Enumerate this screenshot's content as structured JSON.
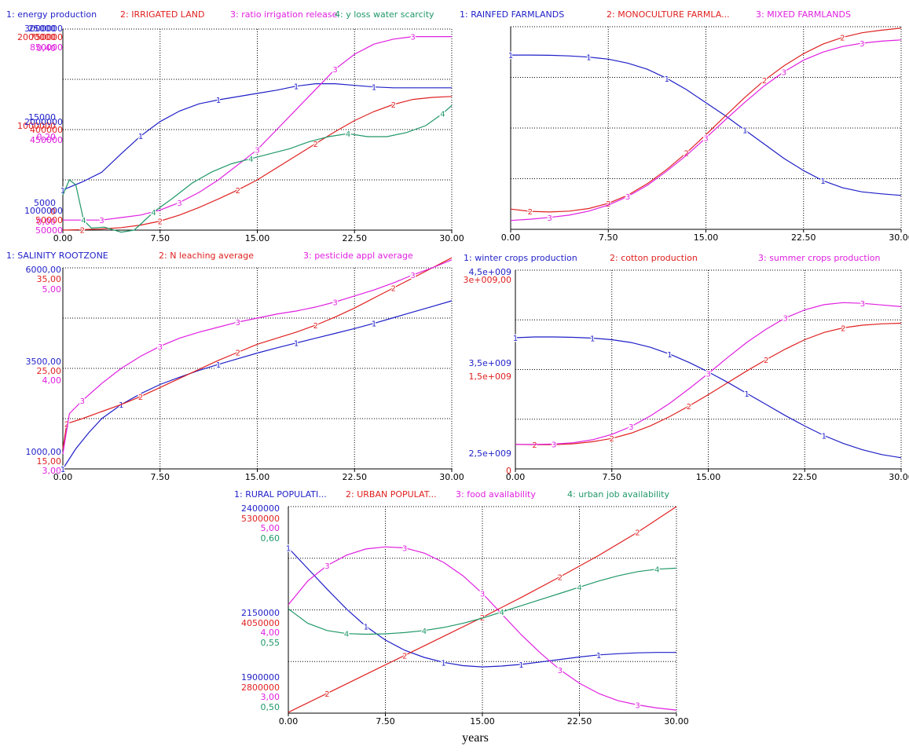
{
  "figure": {
    "xlabel": "years",
    "colors": {
      "c1": "#1f1fc8",
      "c2": "#e02020",
      "c3": "#e020e0",
      "c4": "#209868",
      "grid": "#000000",
      "axis": "#000000"
    }
  },
  "chart_data": [
    {
      "type": "line",
      "id": "energy",
      "xticks": [
        "0.00",
        "7.50",
        "15.00",
        "22.50",
        "30.00"
      ],
      "xlim": [
        0,
        30
      ],
      "legend": [
        "1: energy production",
        "2: IRRIGATED LAND",
        "3: ratio irrigation release",
        "4: y loss water scarcity"
      ],
      "series": [
        {
          "name": "energy production",
          "ylim": [
            0,
            25000
          ],
          "ticks": [
            "25000",
            "15000",
            "5000"
          ],
          "x": [
            0,
            1.5,
            3,
            4.5,
            6,
            7.5,
            9,
            10.5,
            12,
            13.5,
            15,
            16.5,
            18,
            19.5,
            21,
            22.5,
            24,
            25.5,
            27,
            28.5,
            30
          ],
          "y": [
            5000,
            6000,
            7200,
            9500,
            11700,
            13500,
            14800,
            15700,
            16200,
            16600,
            17000,
            17400,
            17900,
            18200,
            18200,
            18000,
            17800,
            17700,
            17700,
            17700,
            17700
          ]
        },
        {
          "name": "IRRIGATED LAND",
          "ylim": [
            0,
            2000000
          ],
          "ticks": [
            "2000000",
            "1000000",
            "0"
          ],
          "x": [
            0,
            1.5,
            3,
            4.5,
            6,
            7.5,
            9,
            10.5,
            12,
            13.5,
            15,
            16.5,
            18,
            19.5,
            21,
            22.5,
            24,
            25.5,
            27,
            28.5,
            30
          ],
          "y": [
            0,
            5000,
            12000,
            25000,
            50000,
            90000,
            150000,
            225000,
            310000,
            400000,
            500000,
            620000,
            740000,
            860000,
            980000,
            1090000,
            1180000,
            1250000,
            1300000,
            1320000,
            1330000
          ]
        },
        {
          "name": "ratio irrigation release",
          "ylim": [
            0,
            0.4
          ],
          "ticks": [
            "0,40",
            "0,20",
            "0,00"
          ],
          "x": [
            0,
            1.5,
            3,
            4.5,
            6,
            7.5,
            9,
            10.5,
            12,
            13.5,
            15,
            16.5,
            18,
            19.5,
            21,
            22.5,
            24,
            25.5,
            27,
            28.5,
            30
          ],
          "y": [
            0.02,
            0.02,
            0.02,
            0.025,
            0.03,
            0.04,
            0.055,
            0.075,
            0.1,
            0.13,
            0.16,
            0.2,
            0.24,
            0.28,
            0.32,
            0.35,
            0.37,
            0.38,
            0.385,
            0.385,
            0.385
          ]
        },
        {
          "name": "y loss water scarcity",
          "ylim": [
            0.14,
            0.16
          ],
          "ticks": [
            "0,16",
            "0,15",
            "0,14"
          ],
          "x": [
            0,
            0.5,
            1,
            1.6,
            2.2,
            3.2,
            4.5,
            5.5,
            7,
            8.5,
            10,
            11.5,
            13,
            14.5,
            16,
            17.5,
            19,
            20.5,
            22,
            23.5,
            25,
            26.5,
            28,
            29.3,
            30
          ],
          "y": [
            0.1435,
            0.145,
            0.1445,
            0.141,
            0.1402,
            0.1403,
            0.1398,
            0.14,
            0.1418,
            0.1432,
            0.1447,
            0.1458,
            0.1466,
            0.1471,
            0.1476,
            0.1481,
            0.1488,
            0.1493,
            0.1496,
            0.1493,
            0.1493,
            0.1497,
            0.1504,
            0.1516,
            0.1524
          ]
        }
      ]
    },
    {
      "type": "line",
      "id": "farmlands",
      "xticks": [
        "0.00",
        "7.50",
        "15.00",
        "22.50",
        "30.00"
      ],
      "xlim": [
        0,
        30
      ],
      "legend": [
        "1: RAINFED FARMLANDS",
        "2: MONOCULTURE FARMLA...",
        "3: MIXED FARMLANDS"
      ],
      "series": [
        {
          "name": "RAINFED FARMLANDS",
          "ylim": [
            1000000,
            3000000
          ],
          "ticks": [
            "3000000",
            "2000000",
            "1000000"
          ],
          "x": [
            0,
            1.5,
            3,
            4.5,
            6,
            7.5,
            9,
            10.5,
            12,
            13.5,
            15,
            16.5,
            18,
            19.5,
            21,
            22.5,
            24,
            25.5,
            27,
            28.5,
            30
          ],
          "y": [
            2720000,
            2720000,
            2718000,
            2712000,
            2700000,
            2680000,
            2640000,
            2580000,
            2490000,
            2380000,
            2250000,
            2120000,
            1980000,
            1840000,
            1700000,
            1580000,
            1480000,
            1410000,
            1370000,
            1350000,
            1335000
          ]
        },
        {
          "name": "MONOCULTURE FARMLANDS",
          "ylim": [
            50000,
            750000
          ],
          "ticks": [
            "750000",
            "400000",
            "50000"
          ],
          "x": [
            0,
            1.5,
            3,
            4.5,
            6,
            7.5,
            9,
            10.5,
            12,
            13.5,
            15,
            16.5,
            18,
            19.5,
            21,
            22.5,
            24,
            25.5,
            27,
            28.5,
            30
          ],
          "y": [
            120000,
            112000,
            110000,
            113000,
            122000,
            140000,
            168000,
            208000,
            257000,
            314000,
            377000,
            442000,
            506000,
            565000,
            615000,
            657000,
            690000,
            713000,
            729000,
            738000,
            745000
          ]
        },
        {
          "name": "MIXED FARMLANDS",
          "ylim": [
            50000,
            850000
          ],
          "ticks": [
            "850000",
            "450000",
            "50000"
          ],
          "x": [
            0,
            1.5,
            3,
            4.5,
            6,
            7.5,
            9,
            10.5,
            12,
            13.5,
            15,
            16.5,
            18,
            19.5,
            21,
            22.5,
            24,
            25.5,
            27,
            28.5,
            30
          ],
          "y": [
            85000,
            90000,
            97000,
            106000,
            122000,
            146000,
            180000,
            224000,
            280000,
            342000,
            411000,
            483000,
            552000,
            617000,
            672000,
            718000,
            750000,
            772000,
            785000,
            793000,
            798000
          ]
        }
      ]
    },
    {
      "type": "line",
      "id": "salinity",
      "xticks": [
        "0.00",
        "7.50",
        "15.00",
        "22.50",
        "30.00"
      ],
      "xlim": [
        0,
        30
      ],
      "legend": [
        "1: SALINITY ROOTZONE",
        "2: N leaching average",
        "3: pesticide appl average"
      ],
      "series": [
        {
          "name": "SALINITY ROOTZONE",
          "ylim": [
            1000,
            6000
          ],
          "ticks": [
            "6000,00",
            "3500,00",
            "1000,00"
          ],
          "x": [
            0,
            1,
            2,
            3,
            4.5,
            6,
            7.5,
            9,
            10.5,
            12,
            13.5,
            15,
            16.5,
            18,
            19.5,
            21,
            22.5,
            24,
            25.5,
            27,
            28.5,
            30
          ],
          "y": [
            1000,
            1500,
            1900,
            2250,
            2600,
            2870,
            3100,
            3280,
            3450,
            3600,
            3740,
            3880,
            4010,
            4130,
            4250,
            4370,
            4490,
            4620,
            4760,
            4900,
            5040,
            5180
          ]
        },
        {
          "name": "N leaching average",
          "ylim": [
            15,
            35
          ],
          "ticks": [
            "35,00",
            "25,00",
            "15,00"
          ],
          "x": [
            0,
            0.3,
            1.5,
            3,
            4.5,
            6,
            7.5,
            9,
            10.5,
            12,
            13.5,
            15,
            16.5,
            18,
            19.5,
            21,
            22.5,
            24,
            25.5,
            27,
            28.5,
            30
          ],
          "y": [
            17,
            19.5,
            20,
            20.7,
            21.4,
            22.2,
            23.1,
            24.0,
            24.9,
            25.8,
            26.6,
            27.4,
            28.0,
            28.6,
            29.3,
            30.1,
            31.0,
            32.0,
            33.0,
            34.0,
            35.0,
            36.0
          ]
        },
        {
          "name": "pesticide appl average",
          "ylim": [
            3,
            5
          ],
          "ticks": [
            "5,00",
            "4,00",
            "3,00"
          ],
          "x": [
            0,
            0.5,
            1.5,
            3,
            4.5,
            6,
            7.5,
            9,
            10.5,
            12,
            13.5,
            15,
            16.5,
            18,
            19.5,
            21,
            22.5,
            24,
            25.5,
            27,
            28.5,
            30
          ],
          "y": [
            3.15,
            3.55,
            3.68,
            3.85,
            4.0,
            4.12,
            4.22,
            4.3,
            4.36,
            4.41,
            4.46,
            4.5,
            4.54,
            4.57,
            4.61,
            4.66,
            4.72,
            4.78,
            4.85,
            4.93,
            5.0,
            5.08
          ]
        }
      ]
    },
    {
      "type": "line",
      "id": "crops",
      "xticks": [
        "0.00",
        "7.50",
        "15.00",
        "22.50",
        "30.00"
      ],
      "xlim": [
        0,
        30
      ],
      "legend": [
        "1: winter crops production",
        "2: cotton production",
        "3: summer crops production"
      ],
      "series": [
        {
          "name": "winter crops production",
          "ylim": [
            2000000000,
            4500000000
          ],
          "ticks": [
            "4,5e+009",
            "3,5e+009",
            "2,5e+009"
          ],
          "x": [
            0,
            1.5,
            3,
            4.5,
            6,
            7.5,
            9,
            10.5,
            12,
            13.5,
            15,
            16.5,
            18,
            19.5,
            21,
            22.5,
            24,
            25.5,
            27,
            28.5,
            30
          ],
          "y": [
            3650000000,
            3660000000,
            3660000000,
            3655000000,
            3645000000,
            3625000000,
            3590000000,
            3530000000,
            3445000000,
            3340000000,
            3220000000,
            3090000000,
            2950000000,
            2810000000,
            2670000000,
            2540000000,
            2420000000,
            2320000000,
            2240000000,
            2180000000,
            2140000000
          ]
        },
        {
          "name": "cotton production",
          "ylim": [
            0,
            3000000000
          ],
          "ticks": [
            "3e+009,00",
            "1,5e+009",
            "0"
          ],
          "x": [
            0,
            1.5,
            3,
            4.5,
            6,
            7.5,
            9,
            10.5,
            12,
            13.5,
            15,
            16.5,
            18,
            19.5,
            21,
            22.5,
            24,
            25.5,
            27,
            28.5,
            30
          ],
          "y": [
            370000000,
            365000000,
            365000000,
            380000000,
            410000000,
            460000000,
            540000000,
            650000000,
            790000000,
            950000000,
            1120000000,
            1300000000,
            1480000000,
            1650000000,
            1810000000,
            1950000000,
            2060000000,
            2130000000,
            2170000000,
            2190000000,
            2200000000
          ]
        },
        {
          "name": "summer crops production",
          "ylim": [
            0,
            3000000000
          ],
          "ticks": [],
          "x": [
            0,
            1.5,
            3,
            4.5,
            6,
            7.5,
            9,
            10.5,
            12,
            13.5,
            15,
            16.5,
            18,
            19.5,
            21,
            22.5,
            24,
            25.5,
            27,
            28.5,
            30
          ],
          "y": [
            370000000,
            370000000,
            375000000,
            395000000,
            440000000,
            520000000,
            640000000,
            800000000,
            990000000,
            1210000000,
            1440000000,
            1680000000,
            1910000000,
            2110000000,
            2280000000,
            2400000000,
            2480000000,
            2510000000,
            2500000000,
            2475000000,
            2450000000
          ]
        }
      ]
    },
    {
      "type": "line",
      "id": "population",
      "xticks": [
        "0.00",
        "7.50",
        "15.00",
        "22.50",
        "30.00"
      ],
      "xlim": [
        0,
        30
      ],
      "legend": [
        "1: RURAL POPULATI...",
        "2: URBAN POPULAT...",
        "3: food availability",
        "4: urban job availability"
      ],
      "series": [
        {
          "name": "RURAL POPULATION",
          "ylim": [
            1900000,
            2400000
          ],
          "ticks": [
            "2400000",
            "2150000",
            "1900000"
          ],
          "x": [
            0,
            1.5,
            3,
            4.5,
            6,
            7.5,
            9,
            10.5,
            12,
            13.5,
            15,
            16.5,
            18,
            19.5,
            21,
            22.5,
            24,
            25.5,
            27,
            28.5,
            30
          ],
          "y": [
            2300000,
            2250000,
            2200000,
            2152000,
            2110000,
            2077000,
            2052000,
            2035000,
            2023000,
            2015000,
            2012000,
            2014000,
            2018000,
            2024000,
            2030000,
            2036000,
            2041000,
            2044000,
            2046000,
            2047000,
            2047000
          ]
        },
        {
          "name": "URBAN POPULATION",
          "ylim": [
            2800000,
            5300000
          ],
          "ticks": [
            "5300000",
            "4050000",
            "2800000"
          ],
          "x": [
            0,
            3,
            6,
            9,
            12,
            15,
            18,
            21,
            24,
            27,
            30
          ],
          "y": [
            2810000,
            3040000,
            3270000,
            3500000,
            3730000,
            3960000,
            4200000,
            4450000,
            4710000,
            4990000,
            5300000
          ]
        },
        {
          "name": "food availability",
          "ylim": [
            3,
            5
          ],
          "ticks": [
            "5,00",
            "4,00",
            "3,00"
          ],
          "x": [
            0,
            1.5,
            3,
            4.5,
            6,
            7.5,
            9,
            10.5,
            12,
            13.5,
            15,
            16.5,
            18,
            19.5,
            21,
            22.5,
            24,
            25.5,
            27,
            28.5,
            30
          ],
          "y": [
            4.05,
            4.28,
            4.43,
            4.53,
            4.59,
            4.61,
            4.6,
            4.55,
            4.46,
            4.33,
            4.16,
            3.96,
            3.76,
            3.58,
            3.42,
            3.29,
            3.19,
            3.12,
            3.08,
            3.05,
            3.03
          ]
        },
        {
          "name": "urban job availability",
          "ylim": [
            0.5,
            0.6
          ],
          "ticks": [
            "0,60",
            "0,55",
            "0,50"
          ],
          "x": [
            0,
            1.5,
            3,
            4.5,
            6,
            7.5,
            9,
            10.5,
            12,
            13.5,
            15,
            16.5,
            18,
            19.5,
            21,
            22.5,
            24,
            25.5,
            27,
            28.5,
            30
          ],
          "y": [
            0.5505,
            0.5435,
            0.54,
            0.5385,
            0.5382,
            0.5384,
            0.539,
            0.54,
            0.5415,
            0.5435,
            0.546,
            0.549,
            0.552,
            0.555,
            0.558,
            0.561,
            0.564,
            0.5665,
            0.5685,
            0.5697,
            0.5702
          ]
        }
      ]
    }
  ]
}
